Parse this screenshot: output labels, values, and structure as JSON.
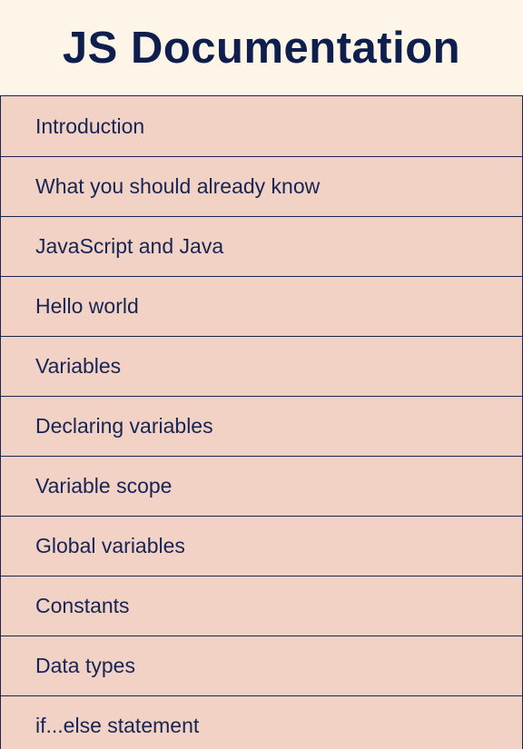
{
  "header": {
    "title": "JS Documentation"
  },
  "nav": {
    "items": [
      {
        "label": "Introduction"
      },
      {
        "label": "What you should already know"
      },
      {
        "label": "JavaScript and Java"
      },
      {
        "label": "Hello world"
      },
      {
        "label": "Variables"
      },
      {
        "label": "Declaring variables"
      },
      {
        "label": "Variable scope"
      },
      {
        "label": "Global variables"
      },
      {
        "label": "Constants"
      },
      {
        "label": "Data types"
      },
      {
        "label": "if...else statement"
      }
    ]
  },
  "colors": {
    "title": "#0f1f4d",
    "header_background": "#fdf5e8",
    "nav_item_background": "#f2d2c4",
    "nav_border": "#1b2550",
    "nav_text": "#172456"
  }
}
